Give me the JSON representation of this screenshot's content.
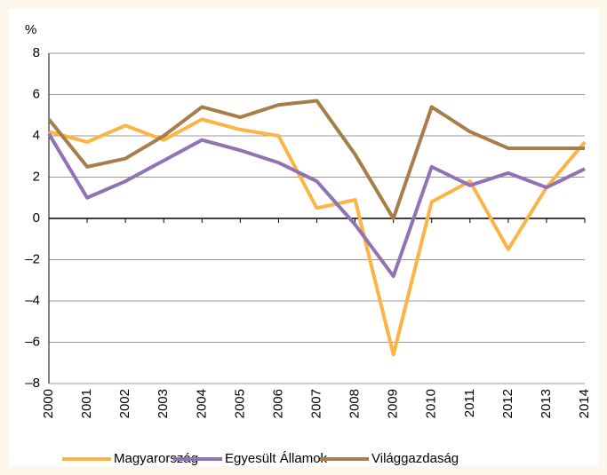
{
  "chart_data": {
    "type": "line",
    "y_label": "%",
    "categories": [
      "2000",
      "2001",
      "2002",
      "2003",
      "2004",
      "2005",
      "2006",
      "2007",
      "2008",
      "2009",
      "2010",
      "2011",
      "2012",
      "2013",
      "2014"
    ],
    "series": [
      {
        "name": "Magyarország",
        "color": "#fbb445",
        "values": [
          4.2,
          3.7,
          4.5,
          3.8,
          4.8,
          4.3,
          4.0,
          0.5,
          0.9,
          -6.6,
          0.8,
          1.8,
          -1.5,
          1.5,
          3.7
        ]
      },
      {
        "name": "Egyesült Államok",
        "color": "#9073b5",
        "values": [
          4.1,
          1.0,
          1.8,
          2.8,
          3.8,
          3.3,
          2.7,
          1.8,
          -0.3,
          -2.8,
          2.5,
          1.6,
          2.2,
          1.5,
          2.4
        ]
      },
      {
        "name": "Világgazdaság",
        "color": "#a77d48",
        "values": [
          4.8,
          2.5,
          2.9,
          4.0,
          5.4,
          4.9,
          5.5,
          5.7,
          3.1,
          0.0,
          5.4,
          4.2,
          3.4,
          3.4,
          3.4
        ]
      }
    ],
    "ylim": [
      -8,
      8
    ],
    "yticks": [
      8,
      6,
      4,
      2,
      0,
      {
        "value": -2,
        "label": "–2"
      },
      {
        "value": -4,
        "label": "–4"
      },
      {
        "value": -6,
        "label": "–6"
      },
      {
        "value": -8,
        "label": "–8"
      }
    ],
    "grid": true
  }
}
